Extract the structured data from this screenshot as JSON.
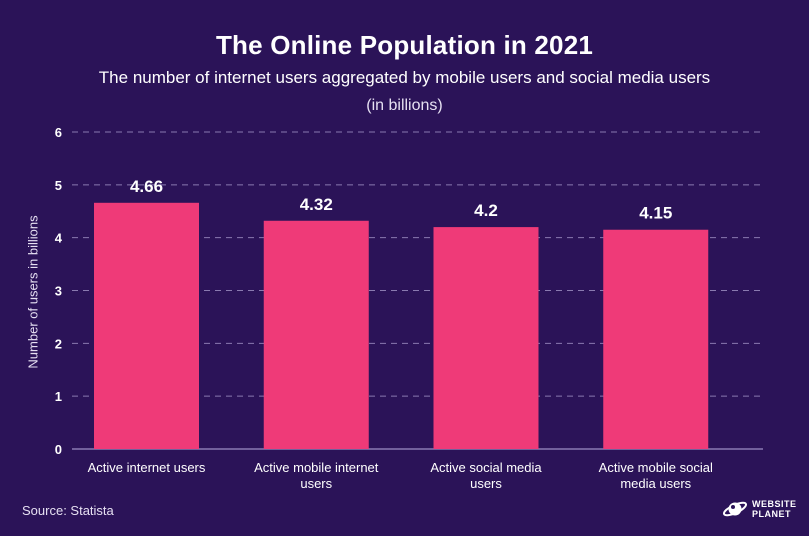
{
  "chart_data": {
    "type": "bar",
    "title": "The Online Population in 2021",
    "subtitle": "The number of internet users aggregated by mobile users and social media users",
    "unit_note": "(in billions)",
    "ylabel": "Number of users in billions",
    "xlabel": "",
    "categories": [
      "Active internet users",
      "Active mobile internet users",
      "Active social media users",
      "Active mobile social media users"
    ],
    "values": [
      4.66,
      4.32,
      4.2,
      4.15
    ],
    "data_labels": [
      "4.66",
      "4.32",
      "4.2",
      "4.15"
    ],
    "ylim": [
      0,
      6
    ],
    "yticks": [
      0,
      1,
      2,
      3,
      4,
      5,
      6
    ],
    "grid": true,
    "legend": "none",
    "colors": {
      "bar": "#ef3a78",
      "background": "#2b1358",
      "grid": "#8a7ab0",
      "text": "#ffffff"
    }
  },
  "source": "Source: Statista",
  "logo": {
    "line1": "WEBSITE",
    "line2": "PLANET",
    "icon": "planet-icon"
  }
}
